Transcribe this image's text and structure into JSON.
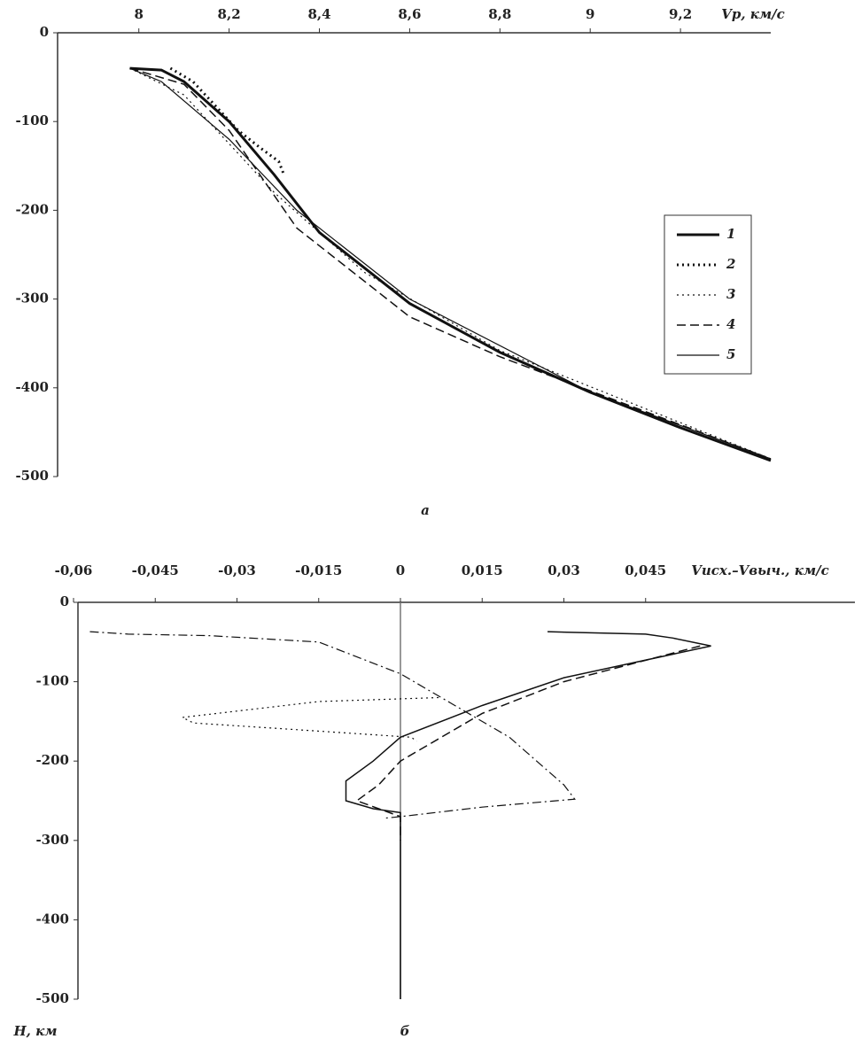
{
  "chart_data": [
    {
      "type": "line",
      "caption": "а",
      "x_label": "Vp, км/с",
      "xlim": [
        7.82,
        9.4
      ],
      "ylim": [
        -500,
        0
      ],
      "xticks": [
        8,
        {
          "value": 8.2,
          "label": "8,2"
        },
        {
          "value": 8.4,
          "label": "8,4"
        },
        {
          "value": 8.6,
          "label": "8,6"
        },
        {
          "value": 8.8,
          "label": "8,8"
        },
        9,
        {
          "value": 9.2,
          "label": "9,2"
        }
      ],
      "yticks": [
        0,
        -100,
        -200,
        -300,
        -400,
        -500
      ],
      "legend": "right",
      "series": [
        {
          "name": "1",
          "color": "#111",
          "line_style": "solid",
          "line_width": 3,
          "x": [
            7.98,
            8.05,
            8.1,
            8.2,
            8.3,
            8.4,
            8.6,
            8.8,
            9.0,
            9.2,
            9.4
          ],
          "values": [
            -40,
            -42,
            -55,
            -100,
            -160,
            -225,
            -305,
            -360,
            -405,
            -445,
            -482
          ]
        },
        {
          "name": "2",
          "color": "#111",
          "line_style": "dotted",
          "line_width": 3,
          "x": [
            8.07,
            8.12,
            8.22,
            8.27,
            8.31,
            8.32
          ],
          "values": [
            -40,
            -55,
            -110,
            -130,
            -145,
            -158
          ]
        },
        {
          "name": "3",
          "color": "#111",
          "line_style": "dotted",
          "line_width": 1.2,
          "x": [
            7.98,
            8.1,
            8.3,
            8.5,
            8.8,
            9.4
          ],
          "values": [
            -40,
            -70,
            -180,
            -270,
            -358,
            -480
          ]
        },
        {
          "name": "4",
          "color": "#111",
          "line_style": "dashed",
          "line_width": 1.5,
          "x": [
            7.98,
            8.1,
            8.2,
            8.35,
            8.6,
            8.8,
            9.4
          ],
          "values": [
            -40,
            -58,
            -110,
            -220,
            -320,
            -365,
            -480
          ]
        },
        {
          "name": "5",
          "color": "#111",
          "line_style": "solid",
          "line_width": 1.2,
          "x": [
            7.98,
            8.05,
            8.2,
            8.35,
            8.6,
            9.0,
            9.4
          ],
          "values": [
            -40,
            -55,
            -120,
            -200,
            -300,
            -405,
            -480
          ]
        }
      ]
    },
    {
      "type": "line",
      "caption": "б",
      "x_label": "Vисх.–Vвыч., км/с",
      "y_label": "H, км",
      "xlim": [
        -0.06,
        0.08
      ],
      "ylim": [
        -500,
        0
      ],
      "xticks": [
        {
          "value": -0.06,
          "label": "-0,06"
        },
        {
          "value": -0.045,
          "label": "-0,045"
        },
        {
          "value": -0.03,
          "label": "-0,03"
        },
        {
          "value": -0.015,
          "label": "-0,015"
        },
        0,
        {
          "value": 0.015,
          "label": "0,015"
        },
        {
          "value": 0.03,
          "label": "0,03"
        },
        {
          "value": 0.045,
          "label": "0,045"
        }
      ],
      "yticks": [
        0,
        -100,
        -200,
        -300,
        -400,
        -500
      ],
      "zero_line": true,
      "series": [
        {
          "color": "#111",
          "line_style": "dashdot",
          "line_width": 1.2,
          "x": [
            -0.057,
            -0.05,
            -0.035,
            -0.015,
            0,
            0.02,
            0.03,
            0.032,
            0.015,
            0,
            -0.003
          ],
          "values": [
            -37,
            -40,
            -42,
            -50,
            -90,
            -170,
            -230,
            -248,
            -258,
            -270,
            -272
          ]
        },
        {
          "color": "#111",
          "line_style": "dotted",
          "line_width": 1.2,
          "x": [
            0.007,
            -0.015,
            -0.04,
            -0.038,
            -0.02,
            0.002,
            0.003
          ],
          "values": [
            -120,
            -125,
            -145,
            -152,
            -160,
            -170,
            -175
          ]
        },
        {
          "color": "#111",
          "line_style": "solid",
          "line_width": 1.5,
          "x": [
            0.027,
            0.045,
            0.05,
            0.057,
            0.03,
            0.015,
            0,
            -0.005,
            -0.01,
            -0.01,
            -0.005,
            0,
            0,
            0
          ],
          "values": [
            -37,
            -40,
            -45,
            -55,
            -95,
            -130,
            -170,
            -200,
            -225,
            -250,
            -260,
            -265,
            -280,
            -500
          ]
        },
        {
          "color": "#111",
          "line_style": "dashed",
          "line_width": 1.5,
          "x": [
            0.055,
            0.03,
            0.015,
            0,
            -0.004,
            -0.008,
            0,
            0
          ],
          "values": [
            -55,
            -100,
            -140,
            -200,
            -230,
            -250,
            -270,
            -300
          ]
        }
      ]
    }
  ]
}
